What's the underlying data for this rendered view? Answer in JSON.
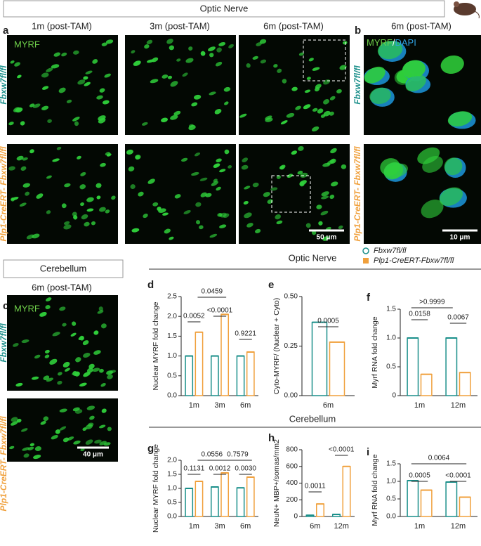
{
  "sections": {
    "optic_nerve_box": "Optic Nerve",
    "cerebellum_box": "Cerebellum",
    "optic_nerve_graphs": "Optic Nerve",
    "cerebellum_graphs": "Cerebellum"
  },
  "genotypes": {
    "control": "Fbxw7fl/fl",
    "mutant": "Plp1-CreERT- Fbxw7fl/fl"
  },
  "panels": {
    "a": {
      "label": "a",
      "columns": [
        "1m (post-TAM)",
        "3m (post-TAM)",
        "6m (post-TAM)"
      ],
      "stain": "MYRF",
      "scale_bar": "50 μm"
    },
    "b": {
      "label": "b",
      "column": "6m (post-TAM)",
      "stain": [
        "MYRF",
        "/",
        "DAPI"
      ],
      "scale_bar": "10 μm"
    },
    "c": {
      "label": "c",
      "column": "6m (post-TAM)",
      "stain": "MYRF",
      "scale_bar": "40 μm"
    }
  },
  "legend": [
    {
      "name": "Fbxw7fl/fl",
      "color": "#1a8f8a",
      "marker": "circle"
    },
    {
      "name": "Plp1-CreERT-Fbxw7fl/fl",
      "color": "#f0a03c",
      "marker": "square"
    }
  ],
  "chart_data": [
    {
      "type": "bar",
      "label": "d",
      "ylabel": "Nuclear MYRF fold change",
      "categories": [
        "1m",
        "3m",
        "6m"
      ],
      "series": [
        {
          "color": "#1a8f8a",
          "values": [
            1.0,
            1.0,
            1.0
          ]
        },
        {
          "color": "#f0a03c",
          "values": [
            1.6,
            2.05,
            1.1
          ]
        }
      ],
      "ylim": [
        0,
        2.5
      ],
      "yticks": [
        {
          "value": 0,
          "label": "0.0"
        },
        0.5,
        {
          "value": 1,
          "label": "1.0"
        },
        1.5,
        {
          "value": 2,
          "label": "2.0"
        },
        2.5
      ],
      "annotations": [
        "0.0052",
        "<0.0001",
        "0.9221",
        "0.0459"
      ]
    },
    {
      "type": "bar",
      "label": "e",
      "ylabel": "Cyto-MYRF/ (Nuclear + Cyto)",
      "categories": [
        "6m"
      ],
      "series": [
        {
          "color": "#1a8f8a",
          "values": [
            0.37
          ]
        },
        {
          "color": "#f0a03c",
          "values": [
            0.27
          ]
        }
      ],
      "ylim": [
        0,
        0.5
      ],
      "yticks": [
        {
          "value": 0,
          "label": "0.00"
        },
        0.25,
        {
          "value": 0.5,
          "label": "0.50"
        }
      ],
      "annotations": [
        "0.0005"
      ]
    },
    {
      "type": "bar",
      "label": "f",
      "ylabel": "Myrf RNA fold change",
      "categories": [
        "1m",
        "12m"
      ],
      "series": [
        {
          "color": "#1a8f8a",
          "values": [
            1.0,
            1.0
          ]
        },
        {
          "color": "#f0a03c",
          "values": [
            0.37,
            0.4
          ]
        }
      ],
      "ylim": [
        0,
        1.5
      ],
      "yticks": [
        0,
        0.5,
        {
          "value": 1,
          "label": "1.0"
        },
        1.5
      ],
      "annotations": [
        "0.0158",
        "0.0067",
        ">0.9999"
      ]
    },
    {
      "type": "bar",
      "label": "g",
      "ylabel": "Nuclear MYRF fold change",
      "categories": [
        "1m",
        "3m",
        "6m"
      ],
      "series": [
        {
          "color": "#1a8f8a",
          "values": [
            1.0,
            1.05,
            1.02
          ]
        },
        {
          "color": "#f0a03c",
          "values": [
            1.25,
            1.55,
            1.4
          ]
        }
      ],
      "ylim": [
        0,
        2
      ],
      "yticks": [
        {
          "value": 0,
          "label": "0.0"
        },
        0.5,
        {
          "value": 1,
          "label": "1.0"
        },
        1.5,
        {
          "value": 2,
          "label": "2.0"
        }
      ],
      "annotations": [
        "0.1131",
        "0.0012",
        "0.0030",
        "0.0556",
        "0.7579"
      ]
    },
    {
      "type": "bar",
      "label": "h",
      "ylabel": "NeuN+ MBP+/somas/mm2",
      "categories": [
        "6m",
        "12m"
      ],
      "series": [
        {
          "color": "#1a8f8a",
          "values": [
            15,
            25
          ]
        },
        {
          "color": "#f0a03c",
          "values": [
            150,
            600
          ]
        }
      ],
      "ylim": [
        0,
        800
      ],
      "yticks": [
        0,
        200,
        400,
        600,
        800
      ],
      "annotations": [
        "0.0011",
        "<0.0001"
      ]
    },
    {
      "type": "bar",
      "label": "i",
      "ylabel": "Myrf RNA fold change",
      "categories": [
        "1m",
        "12m"
      ],
      "series": [
        {
          "color": "#1a8f8a",
          "values": [
            1.02,
            0.98
          ]
        },
        {
          "color": "#f0a03c",
          "values": [
            0.75,
            0.55
          ]
        }
      ],
      "ylim": [
        0,
        1.5
      ],
      "yticks": [
        {
          "value": 0,
          "label": "0.0"
        },
        0.5,
        {
          "value": 1,
          "label": "1.0"
        },
        1.5
      ],
      "annotations": [
        "0.0005",
        "<0.0001",
        "0.0064"
      ]
    }
  ]
}
